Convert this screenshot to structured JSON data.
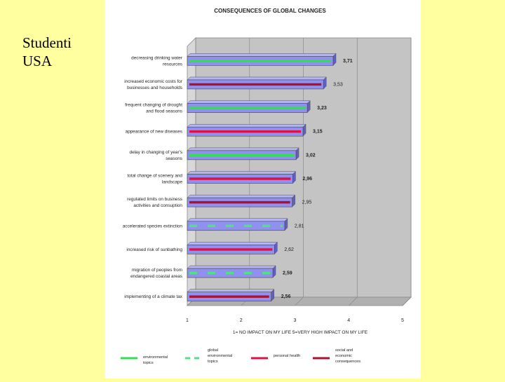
{
  "slide": {
    "label_lines": [
      "Studenti",
      "USA"
    ]
  },
  "chart_data": {
    "type": "bar",
    "orientation": "horizontal",
    "title": "CONSEQUENCES OF GLOBAL CHANGES",
    "xlabel": "1= NO IMPACT ON MY LIFE  5=VERY HIGH IMPACT ON MY LIFE",
    "xlim": [
      1,
      5
    ],
    "xticks": [
      "1",
      "2",
      "3",
      "4",
      "5"
    ],
    "grid": true,
    "bar_color": "#9090ee",
    "categories": [
      [
        "decreasing drinking water",
        "resources"
      ],
      [
        "increased economic costs for",
        "businesses and households"
      ],
      [
        "frequent changing of drought",
        "and flood seasons"
      ],
      [
        "appearance of new diseases"
      ],
      [
        "delay in changing of year's",
        "seasons"
      ],
      [
        "total change of scenery and",
        "landscape"
      ],
      [
        "regulated limits on business",
        "activities and consuption"
      ],
      [
        "accelerated species extinction"
      ],
      [
        "increased risk of sunbathing"
      ],
      [
        "migration of peoples from",
        "endangered coastal areas"
      ],
      [
        "implementing of a climate tax"
      ]
    ],
    "values": [
      3.71,
      3.53,
      3.23,
      3.15,
      3.02,
      2.96,
      2.95,
      2.81,
      2.62,
      2.59,
      2.56
    ],
    "value_labels": [
      "3,71",
      "3,53",
      "3,23",
      "3,15",
      "3,02",
      "2,96",
      "2,95",
      "2,81",
      "2,62",
      "2,59",
      "2,56"
    ],
    "value_label_bold": [
      true,
      false,
      true,
      true,
      true,
      true,
      false,
      false,
      false,
      true,
      true
    ],
    "groups": [
      "environmental",
      "social",
      "environmental",
      "health",
      "environmental",
      "health",
      "social",
      "global",
      "health",
      "global",
      "social"
    ],
    "legend": [
      {
        "key": "environmental",
        "lines": [
          "environmental",
          "topics"
        ],
        "color": "#33dd55",
        "style": "solid"
      },
      {
        "key": "global",
        "lines": [
          "global",
          "environmental",
          "topics"
        ],
        "color": "#55dd88",
        "style": "dashed"
      },
      {
        "key": "health",
        "lines": [
          "personal health"
        ],
        "color": "#dd1144",
        "style": "solid"
      },
      {
        "key": "social",
        "lines": [
          "social and",
          "economic",
          "consequences"
        ],
        "color": "#aa1133",
        "style": "solid"
      }
    ]
  }
}
